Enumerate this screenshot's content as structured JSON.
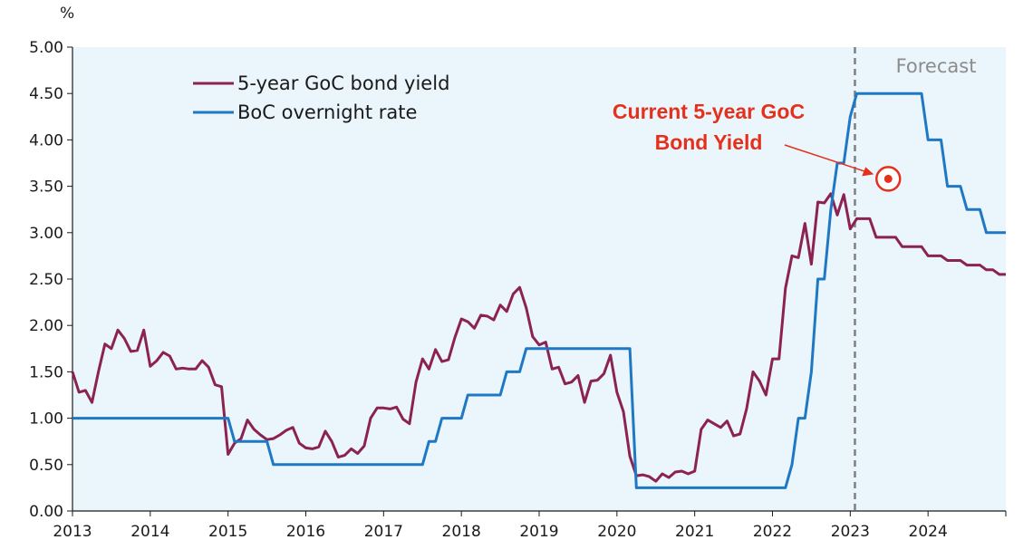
{
  "chart_data": {
    "type": "line",
    "title": "",
    "xlabel": "",
    "ylabel": "%",
    "ylim": [
      0,
      5
    ],
    "xlim": [
      "2013-01",
      "2024-12"
    ],
    "y_ticks": [
      "0.00",
      "0.50",
      "1.00",
      "1.50",
      "2.00",
      "2.50",
      "3.00",
      "3.50",
      "4.00",
      "4.50",
      "5.00"
    ],
    "x_ticks": [
      "2013",
      "2014",
      "2015",
      "2016",
      "2017",
      "2018",
      "2019",
      "2020",
      "2021",
      "2022",
      "2023",
      "2024"
    ],
    "grid": false,
    "legend_position": "top-left",
    "background_color": "#eaf5fc",
    "forecast_start": "2023-02",
    "forecast_label": "Forecast",
    "series": [
      {
        "name": "5-year GoC bond yield",
        "color": "#8b2252",
        "points": [
          [
            "2013-01",
            1.5
          ],
          [
            "2013-02",
            1.28
          ],
          [
            "2013-03",
            1.3
          ],
          [
            "2013-04",
            1.17
          ],
          [
            "2013-05",
            1.5
          ],
          [
            "2013-06",
            1.8
          ],
          [
            "2013-07",
            1.75
          ],
          [
            "2013-08",
            1.95
          ],
          [
            "2013-09",
            1.86
          ],
          [
            "2013-10",
            1.72
          ],
          [
            "2013-11",
            1.73
          ],
          [
            "2013-12",
            1.95
          ],
          [
            "2014-01",
            1.56
          ],
          [
            "2014-02",
            1.62
          ],
          [
            "2014-03",
            1.71
          ],
          [
            "2014-04",
            1.67
          ],
          [
            "2014-05",
            1.53
          ],
          [
            "2014-06",
            1.54
          ],
          [
            "2014-07",
            1.53
          ],
          [
            "2014-08",
            1.53
          ],
          [
            "2014-09",
            1.62
          ],
          [
            "2014-10",
            1.55
          ],
          [
            "2014-11",
            1.36
          ],
          [
            "2014-12",
            1.34
          ],
          [
            "2015-01",
            0.61
          ],
          [
            "2015-02",
            0.73
          ],
          [
            "2015-03",
            0.78
          ],
          [
            "2015-04",
            0.98
          ],
          [
            "2015-05",
            0.88
          ],
          [
            "2015-06",
            0.82
          ],
          [
            "2015-07",
            0.77
          ],
          [
            "2015-08",
            0.78
          ],
          [
            "2015-09",
            0.82
          ],
          [
            "2015-10",
            0.87
          ],
          [
            "2015-11",
            0.9
          ],
          [
            "2015-12",
            0.73
          ],
          [
            "2016-01",
            0.68
          ],
          [
            "2016-02",
            0.67
          ],
          [
            "2016-03",
            0.69
          ],
          [
            "2016-04",
            0.86
          ],
          [
            "2016-05",
            0.75
          ],
          [
            "2016-06",
            0.58
          ],
          [
            "2016-07",
            0.6
          ],
          [
            "2016-08",
            0.67
          ],
          [
            "2016-09",
            0.62
          ],
          [
            "2016-10",
            0.7
          ],
          [
            "2016-11",
            1.0
          ],
          [
            "2016-12",
            1.11
          ],
          [
            "2017-01",
            1.11
          ],
          [
            "2017-02",
            1.1
          ],
          [
            "2017-03",
            1.12
          ],
          [
            "2017-04",
            0.99
          ],
          [
            "2017-05",
            0.94
          ],
          [
            "2017-06",
            1.39
          ],
          [
            "2017-07",
            1.64
          ],
          [
            "2017-08",
            1.53
          ],
          [
            "2017-09",
            1.74
          ],
          [
            "2017-10",
            1.61
          ],
          [
            "2017-11",
            1.63
          ],
          [
            "2017-12",
            1.87
          ],
          [
            "2018-01",
            2.07
          ],
          [
            "2018-02",
            2.04
          ],
          [
            "2018-03",
            1.97
          ],
          [
            "2018-04",
            2.11
          ],
          [
            "2018-05",
            2.1
          ],
          [
            "2018-06",
            2.06
          ],
          [
            "2018-07",
            2.22
          ],
          [
            "2018-08",
            2.15
          ],
          [
            "2018-09",
            2.34
          ],
          [
            "2018-10",
            2.41
          ],
          [
            "2018-11",
            2.19
          ],
          [
            "2018-12",
            1.88
          ],
          [
            "2019-01",
            1.79
          ],
          [
            "2019-02",
            1.82
          ],
          [
            "2019-03",
            1.53
          ],
          [
            "2019-04",
            1.55
          ],
          [
            "2019-05",
            1.37
          ],
          [
            "2019-06",
            1.39
          ],
          [
            "2019-07",
            1.46
          ],
          [
            "2019-08",
            1.17
          ],
          [
            "2019-09",
            1.4
          ],
          [
            "2019-10",
            1.41
          ],
          [
            "2019-11",
            1.48
          ],
          [
            "2019-12",
            1.68
          ],
          [
            "2020-01",
            1.28
          ],
          [
            "2020-02",
            1.07
          ],
          [
            "2020-03",
            0.59
          ],
          [
            "2020-04",
            0.38
          ],
          [
            "2020-05",
            0.39
          ],
          [
            "2020-06",
            0.37
          ],
          [
            "2020-07",
            0.32
          ],
          [
            "2020-08",
            0.4
          ],
          [
            "2020-09",
            0.36
          ],
          [
            "2020-10",
            0.42
          ],
          [
            "2020-11",
            0.43
          ],
          [
            "2020-12",
            0.4
          ],
          [
            "2021-01",
            0.43
          ],
          [
            "2021-02",
            0.88
          ],
          [
            "2021-03",
            0.98
          ],
          [
            "2021-04",
            0.94
          ],
          [
            "2021-05",
            0.9
          ],
          [
            "2021-06",
            0.97
          ],
          [
            "2021-07",
            0.81
          ],
          [
            "2021-08",
            0.83
          ],
          [
            "2021-09",
            1.1
          ],
          [
            "2021-10",
            1.5
          ],
          [
            "2021-11",
            1.4
          ],
          [
            "2021-12",
            1.25
          ],
          [
            "2022-01",
            1.64
          ],
          [
            "2022-02",
            1.64
          ],
          [
            "2022-03",
            2.4
          ],
          [
            "2022-04",
            2.75
          ],
          [
            "2022-05",
            2.73
          ],
          [
            "2022-06",
            3.1
          ],
          [
            "2022-07",
            2.66
          ],
          [
            "2022-08",
            3.33
          ],
          [
            "2022-09",
            3.32
          ],
          [
            "2022-10",
            3.42
          ],
          [
            "2022-11",
            3.19
          ],
          [
            "2022-12",
            3.41
          ],
          [
            "2023-01",
            3.04
          ],
          [
            "2023-02",
            3.15
          ],
          [
            "2023-03",
            3.15
          ],
          [
            "2023-04",
            3.15
          ],
          [
            "2023-05",
            2.95
          ],
          [
            "2023-06",
            2.95
          ],
          [
            "2023-07",
            2.95
          ],
          [
            "2023-08",
            2.95
          ],
          [
            "2023-09",
            2.85
          ],
          [
            "2023-10",
            2.85
          ],
          [
            "2023-11",
            2.85
          ],
          [
            "2023-12",
            2.85
          ],
          [
            "2024-01",
            2.75
          ],
          [
            "2024-02",
            2.75
          ],
          [
            "2024-03",
            2.75
          ],
          [
            "2024-04",
            2.7
          ],
          [
            "2024-05",
            2.7
          ],
          [
            "2024-06",
            2.7
          ],
          [
            "2024-07",
            2.65
          ],
          [
            "2024-08",
            2.65
          ],
          [
            "2024-09",
            2.65
          ],
          [
            "2024-10",
            2.6
          ],
          [
            "2024-11",
            2.6
          ],
          [
            "2024-12",
            2.55
          ],
          [
            "2025-01",
            2.55
          ]
        ]
      },
      {
        "name": "BoC overnight rate",
        "color": "#1f78c4",
        "points": [
          [
            "2013-01",
            1.0
          ],
          [
            "2015-01",
            1.0
          ],
          [
            "2015-02",
            0.75
          ],
          [
            "2015-07",
            0.75
          ],
          [
            "2015-08",
            0.5
          ],
          [
            "2017-07",
            0.5
          ],
          [
            "2017-08",
            0.75
          ],
          [
            "2017-09",
            0.75
          ],
          [
            "2017-10",
            1.0
          ],
          [
            "2018-01",
            1.0
          ],
          [
            "2018-02",
            1.25
          ],
          [
            "2018-07",
            1.25
          ],
          [
            "2018-08",
            1.5
          ],
          [
            "2018-10",
            1.5
          ],
          [
            "2018-11",
            1.75
          ],
          [
            "2020-03",
            1.75
          ],
          [
            "2020-04",
            0.25
          ],
          [
            "2022-03",
            0.25
          ],
          [
            "2022-04",
            0.5
          ],
          [
            "2022-05",
            1.0
          ],
          [
            "2022-06",
            1.0
          ],
          [
            "2022-07",
            1.5
          ],
          [
            "2022-08",
            2.5
          ],
          [
            "2022-09",
            2.5
          ],
          [
            "2022-10",
            3.25
          ],
          [
            "2022-11",
            3.75
          ],
          [
            "2022-12",
            3.75
          ],
          [
            "2023-01",
            4.25
          ],
          [
            "2023-02",
            4.5
          ],
          [
            "2023-12",
            4.5
          ],
          [
            "2024-01",
            4.0
          ],
          [
            "2024-03",
            4.0
          ],
          [
            "2024-04",
            3.5
          ],
          [
            "2024-06",
            3.5
          ],
          [
            "2024-07",
            3.25
          ],
          [
            "2024-09",
            3.25
          ],
          [
            "2024-10",
            3.0
          ],
          [
            "2025-01",
            3.0
          ]
        ]
      }
    ],
    "annotations": [
      {
        "text_lines": [
          "Current 5-year GoC",
          "Bond Yield"
        ],
        "color": "#e5311b",
        "marker_x": "2023-07",
        "marker_y": 3.58
      }
    ]
  }
}
